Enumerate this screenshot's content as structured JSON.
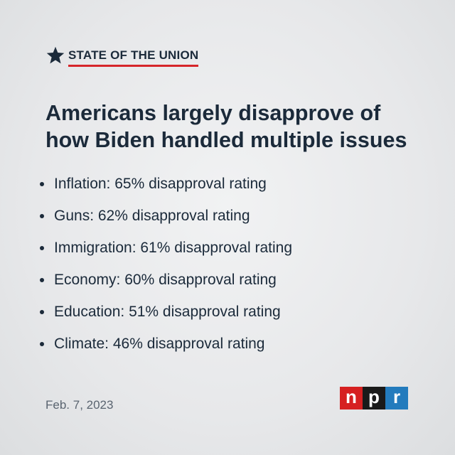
{
  "header": {
    "icon": "star-icon",
    "label": "STATE OF THE UNION",
    "underline_color": "#d6262a"
  },
  "headline": "Americans largely disapprove of how Biden handled multiple issues",
  "issues": [
    {
      "text": "Inflation: 65% disapproval rating"
    },
    {
      "text": "Guns: 62% disapproval rating"
    },
    {
      "text": "Immigration: 61% disapproval rating"
    },
    {
      "text": "Economy: 60% disapproval rating"
    },
    {
      "text": "Education: 51% disapproval rating"
    },
    {
      "text": "Climate: 46% disapproval rating"
    }
  ],
  "date": "Feb. 7, 2023",
  "logo": {
    "letters": [
      {
        "char": "n",
        "color": "#d62021"
      },
      {
        "char": "p",
        "color": "#1a1a1a"
      },
      {
        "char": "r",
        "color": "#237bbd"
      }
    ]
  }
}
